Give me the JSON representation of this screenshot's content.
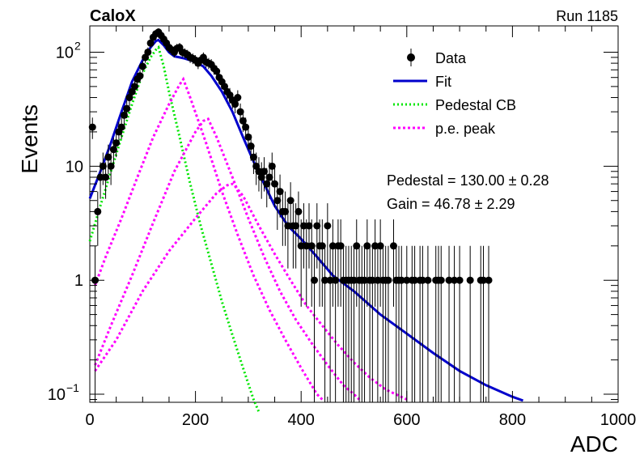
{
  "header": {
    "left": "CaloX",
    "right": "Run 1185"
  },
  "colors": {
    "data": "#000000",
    "fit": "#0000cc",
    "pedestal": "#00e600",
    "pe": "#ff00ff"
  },
  "chart_data": {
    "type": "scatter",
    "title": "",
    "xlabel": "ADC",
    "ylabel": "Events",
    "xlim": [
      0,
      1000
    ],
    "ylim": [
      0.085,
      170
    ],
    "yscale": "log",
    "grid": false,
    "legend_position": "top-right",
    "x_ticks": [
      "0",
      "200",
      "400",
      "600",
      "800",
      "1000"
    ],
    "y_ticks": [
      {
        "value": 0.1,
        "base": "10",
        "exp": "−1"
      },
      {
        "value": 1,
        "base": "1",
        "exp": ""
      },
      {
        "value": 10,
        "base": "10",
        "exp": ""
      },
      {
        "value": 100,
        "base": "10",
        "exp": "2"
      }
    ],
    "legend": [
      {
        "label": "Data",
        "style": "marker"
      },
      {
        "label": "Fit",
        "style": "solid"
      },
      {
        "label": "Pedestal CB",
        "style": "dotted-green"
      },
      {
        "label": "p.e. peak",
        "style": "dotted-magenta"
      }
    ],
    "annotations": [
      {
        "text": "Pedestal = 130.00 ± 0.28"
      },
      {
        "text": "Gain = 46.78 ± 2.29"
      }
    ],
    "series": [
      {
        "name": "Data",
        "style": "marker",
        "points": [
          [
            5,
            22
          ],
          [
            10,
            1
          ],
          [
            15,
            4
          ],
          [
            20,
            8
          ],
          [
            25,
            10
          ],
          [
            30,
            8
          ],
          [
            35,
            12
          ],
          [
            40,
            10
          ],
          [
            45,
            14
          ],
          [
            50,
            16
          ],
          [
            55,
            20
          ],
          [
            60,
            22
          ],
          [
            65,
            28
          ],
          [
            70,
            32
          ],
          [
            75,
            40
          ],
          [
            80,
            45
          ],
          [
            85,
            50
          ],
          [
            90,
            58
          ],
          [
            95,
            62
          ],
          [
            100,
            75
          ],
          [
            105,
            90
          ],
          [
            110,
            100
          ],
          [
            115,
            120
          ],
          [
            120,
            135
          ],
          [
            125,
            145
          ],
          [
            130,
            150
          ],
          [
            135,
            140
          ],
          [
            140,
            130
          ],
          [
            145,
            120
          ],
          [
            150,
            110
          ],
          [
            155,
            105
          ],
          [
            160,
            100
          ],
          [
            165,
            108
          ],
          [
            170,
            110
          ],
          [
            175,
            100
          ],
          [
            180,
            98
          ],
          [
            185,
            95
          ],
          [
            190,
            90
          ],
          [
            195,
            88
          ],
          [
            200,
            85
          ],
          [
            205,
            80
          ],
          [
            210,
            85
          ],
          [
            215,
            90
          ],
          [
            220,
            82
          ],
          [
            225,
            80
          ],
          [
            230,
            78
          ],
          [
            235,
            72
          ],
          [
            240,
            68
          ],
          [
            245,
            60
          ],
          [
            250,
            55
          ],
          [
            255,
            50
          ],
          [
            260,
            45
          ],
          [
            265,
            42
          ],
          [
            270,
            38
          ],
          [
            275,
            35
          ],
          [
            280,
            40
          ],
          [
            285,
            30
          ],
          [
            290,
            25
          ],
          [
            295,
            22
          ],
          [
            300,
            18
          ],
          [
            305,
            15
          ],
          [
            310,
            12
          ],
          [
            315,
            10
          ],
          [
            320,
            9
          ],
          [
            325,
            8
          ],
          [
            330,
            9
          ],
          [
            335,
            7
          ],
          [
            340,
            8
          ],
          [
            345,
            10
          ],
          [
            350,
            7
          ],
          [
            355,
            5
          ],
          [
            360,
            6
          ],
          [
            365,
            4
          ],
          [
            370,
            4
          ],
          [
            375,
            3
          ],
          [
            380,
            5
          ],
          [
            385,
            3
          ],
          [
            390,
            3
          ],
          [
            395,
            4
          ],
          [
            400,
            2
          ],
          [
            405,
            3
          ],
          [
            410,
            2
          ],
          [
            415,
            3
          ],
          [
            420,
            2
          ],
          [
            425,
            1
          ],
          [
            430,
            3
          ],
          [
            435,
            2
          ],
          [
            440,
            2
          ],
          [
            445,
            1
          ],
          [
            450,
            3
          ],
          [
            455,
            1
          ],
          [
            460,
            2
          ],
          [
            465,
            1
          ],
          [
            470,
            2
          ],
          [
            475,
            2
          ],
          [
            480,
            1
          ],
          [
            485,
            1
          ],
          [
            490,
            1
          ],
          [
            495,
            1
          ],
          [
            500,
            1
          ],
          [
            505,
            2
          ],
          [
            510,
            1
          ],
          [
            515,
            1
          ],
          [
            520,
            1
          ],
          [
            525,
            2
          ],
          [
            530,
            1
          ],
          [
            535,
            1
          ],
          [
            540,
            2
          ],
          [
            545,
            1
          ],
          [
            550,
            2
          ],
          [
            555,
            1
          ],
          [
            560,
            1
          ],
          [
            565,
            1
          ],
          [
            575,
            2
          ],
          [
            580,
            1
          ],
          [
            585,
            1
          ],
          [
            590,
            1
          ],
          [
            600,
            1
          ],
          [
            610,
            1
          ],
          [
            615,
            1
          ],
          [
            625,
            1
          ],
          [
            630,
            1
          ],
          [
            640,
            1
          ],
          [
            655,
            1
          ],
          [
            660,
            1
          ],
          [
            665,
            1
          ],
          [
            680,
            1
          ],
          [
            690,
            1
          ],
          [
            700,
            1
          ],
          [
            720,
            1
          ],
          [
            740,
            1
          ],
          [
            745,
            1
          ],
          [
            755,
            1
          ]
        ]
      },
      {
        "name": "Fit",
        "style": "solid",
        "points": [
          [
            0,
            5.2
          ],
          [
            20,
            9
          ],
          [
            40,
            16
          ],
          [
            60,
            30
          ],
          [
            80,
            55
          ],
          [
            100,
            85
          ],
          [
            115,
            110
          ],
          [
            125,
            125
          ],
          [
            130,
            128
          ],
          [
            140,
            115
          ],
          [
            150,
            100
          ],
          [
            160,
            92
          ],
          [
            170,
            90
          ],
          [
            180,
            88
          ],
          [
            190,
            85
          ],
          [
            200,
            82
          ],
          [
            215,
            75
          ],
          [
            230,
            62
          ],
          [
            250,
            45
          ],
          [
            270,
            30
          ],
          [
            290,
            18
          ],
          [
            310,
            11
          ],
          [
            330,
            7
          ],
          [
            350,
            4.5
          ],
          [
            375,
            3
          ],
          [
            400,
            2.3
          ],
          [
            430,
            1.6
          ],
          [
            460,
            1.1
          ],
          [
            500,
            0.8
          ],
          [
            550,
            0.5
          ],
          [
            600,
            0.34
          ],
          [
            650,
            0.23
          ],
          [
            700,
            0.16
          ],
          [
            750,
            0.12
          ],
          [
            800,
            0.095
          ],
          [
            820,
            0.088
          ]
        ]
      },
      {
        "name": "Pedestal CB",
        "style": "dotted-green",
        "points": [
          [
            0,
            2.2
          ],
          [
            20,
            4.5
          ],
          [
            40,
            9
          ],
          [
            60,
            18
          ],
          [
            80,
            35
          ],
          [
            100,
            65
          ],
          [
            115,
            90
          ],
          [
            125,
            105
          ],
          [
            130,
            110
          ],
          [
            140,
            75
          ],
          [
            150,
            45
          ],
          [
            170,
            18
          ],
          [
            190,
            7
          ],
          [
            210,
            3
          ],
          [
            230,
            1.4
          ],
          [
            250,
            0.65
          ],
          [
            270,
            0.33
          ],
          [
            290,
            0.17
          ],
          [
            310,
            0.09
          ],
          [
            320,
            0.07
          ]
        ]
      },
      {
        "name": "p.e. peak 1",
        "style": "dotted-magenta",
        "points": [
          [
            10,
            0.9
          ],
          [
            30,
            1.6
          ],
          [
            60,
            3.5
          ],
          [
            90,
            8
          ],
          [
            120,
            18
          ],
          [
            150,
            35
          ],
          [
            170,
            52
          ],
          [
            177,
            58
          ],
          [
            190,
            40
          ],
          [
            220,
            16
          ],
          [
            250,
            6
          ],
          [
            280,
            2.5
          ],
          [
            310,
            1.1
          ],
          [
            340,
            0.55
          ],
          [
            370,
            0.3
          ],
          [
            400,
            0.17
          ],
          [
            430,
            0.1
          ],
          [
            440,
            0.09
          ]
        ]
      },
      {
        "name": "p.e. peak 2",
        "style": "dotted-magenta",
        "points": [
          [
            10,
            0.18
          ],
          [
            40,
            0.4
          ],
          [
            80,
            1.1
          ],
          [
            120,
            3.2
          ],
          [
            160,
            9
          ],
          [
            200,
            20
          ],
          [
            215,
            25
          ],
          [
            224,
            26
          ],
          [
            240,
            18
          ],
          [
            270,
            8
          ],
          [
            300,
            3.5
          ],
          [
            330,
            1.6
          ],
          [
            360,
            0.8
          ],
          [
            390,
            0.45
          ],
          [
            420,
            0.28
          ],
          [
            450,
            0.18
          ],
          [
            480,
            0.12
          ],
          [
            500,
            0.1
          ],
          [
            510,
            0.09
          ]
        ]
      },
      {
        "name": "p.e. peak 3",
        "style": "dotted-magenta",
        "points": [
          [
            10,
            0.16
          ],
          [
            50,
            0.3
          ],
          [
            100,
            0.8
          ],
          [
            150,
            1.8
          ],
          [
            200,
            3.5
          ],
          [
            240,
            5.8
          ],
          [
            260,
            6.8
          ],
          [
            271,
            7
          ],
          [
            290,
            5.5
          ],
          [
            320,
            3
          ],
          [
            350,
            1.7
          ],
          [
            380,
            1
          ],
          [
            410,
            0.6
          ],
          [
            440,
            0.4
          ],
          [
            470,
            0.27
          ],
          [
            500,
            0.19
          ],
          [
            530,
            0.14
          ],
          [
            560,
            0.11
          ],
          [
            600,
            0.09
          ]
        ]
      }
    ]
  }
}
